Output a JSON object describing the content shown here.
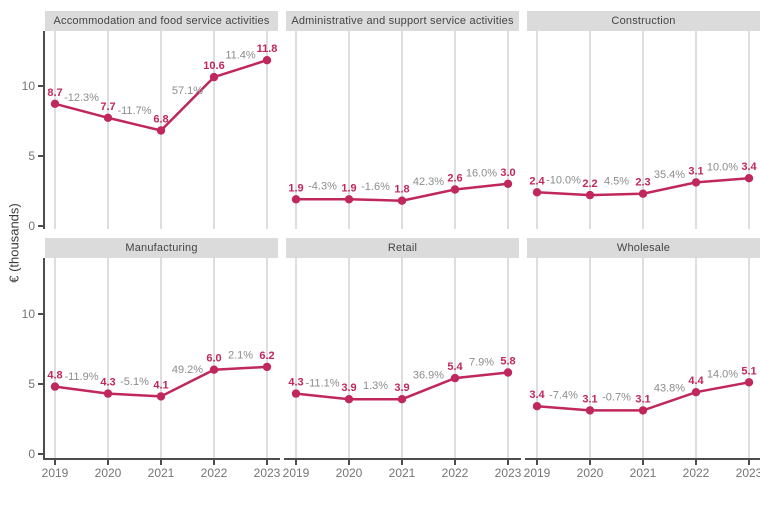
{
  "colors": {
    "line": "#C0275C",
    "value_label": "#C0275C",
    "pct_label": "#8C8C8C",
    "grid": "#DEDEDE",
    "strip_bg": "#DBDBDB",
    "strip_text": "#454545",
    "axis": "#4D4D4D",
    "tick_label": "#757575"
  },
  "chart_data": {
    "type": "line",
    "title": "",
    "xlabel": "",
    "ylabel": "€ (thousands)",
    "x_labels": [
      "2019",
      "2020",
      "2021",
      "2022",
      "2023"
    ],
    "y_tick_labels": [
      "0",
      "5",
      "10"
    ],
    "y_tick_values": [
      0,
      5,
      10
    ],
    "ylim": [
      0,
      14
    ],
    "grid": "vertical-only",
    "legend": "none",
    "facets": [
      {
        "title": "Accommodation and food service activities",
        "values": [
          8.7,
          7.7,
          6.8,
          10.6,
          11.8
        ],
        "value_labels": [
          "8.7",
          "7.7",
          "6.8",
          "10.6",
          "11.8"
        ],
        "pct_labels": [
          "-12.3%",
          "-11.7%",
          "57.1%",
          "11.4%"
        ]
      },
      {
        "title": "Administrative and support service activities",
        "values": [
          1.9,
          1.9,
          1.8,
          2.6,
          3.0
        ],
        "value_labels": [
          "1.9",
          "1.9",
          "1.8",
          "2.6",
          "3.0"
        ],
        "pct_labels": [
          "-4.3%",
          "-1.6%",
          "42.3%",
          "16.0%"
        ]
      },
      {
        "title": "Construction",
        "values": [
          2.4,
          2.2,
          2.3,
          3.1,
          3.4
        ],
        "value_labels": [
          "2.4",
          "2.2",
          "2.3",
          "3.1",
          "3.4"
        ],
        "pct_labels": [
          "-10.0%",
          "4.5%",
          "35.4%",
          "10.0%"
        ]
      },
      {
        "title": "Manufacturing",
        "values": [
          4.8,
          4.3,
          4.1,
          6.0,
          6.2
        ],
        "value_labels": [
          "4.8",
          "4.3",
          "4.1",
          "6.0",
          "6.2"
        ],
        "pct_labels": [
          "-11.9%",
          "-5.1%",
          "49.2%",
          "2.1%"
        ]
      },
      {
        "title": "Retail",
        "values": [
          4.3,
          3.9,
          3.9,
          5.4,
          5.8
        ],
        "value_labels": [
          "4.3",
          "3.9",
          "3.9",
          "5.4",
          "5.8"
        ],
        "pct_labels": [
          "-11.1%",
          "1.3%",
          "36.9%",
          "7.9%"
        ]
      },
      {
        "title": "Wholesale",
        "values": [
          3.4,
          3.1,
          3.1,
          4.4,
          5.1
        ],
        "value_labels": [
          "3.4",
          "3.1",
          "3.1",
          "4.4",
          "5.1"
        ],
        "pct_labels": [
          "-7.4%",
          "-0.7%",
          "43.8%",
          "14.0%"
        ]
      }
    ]
  }
}
